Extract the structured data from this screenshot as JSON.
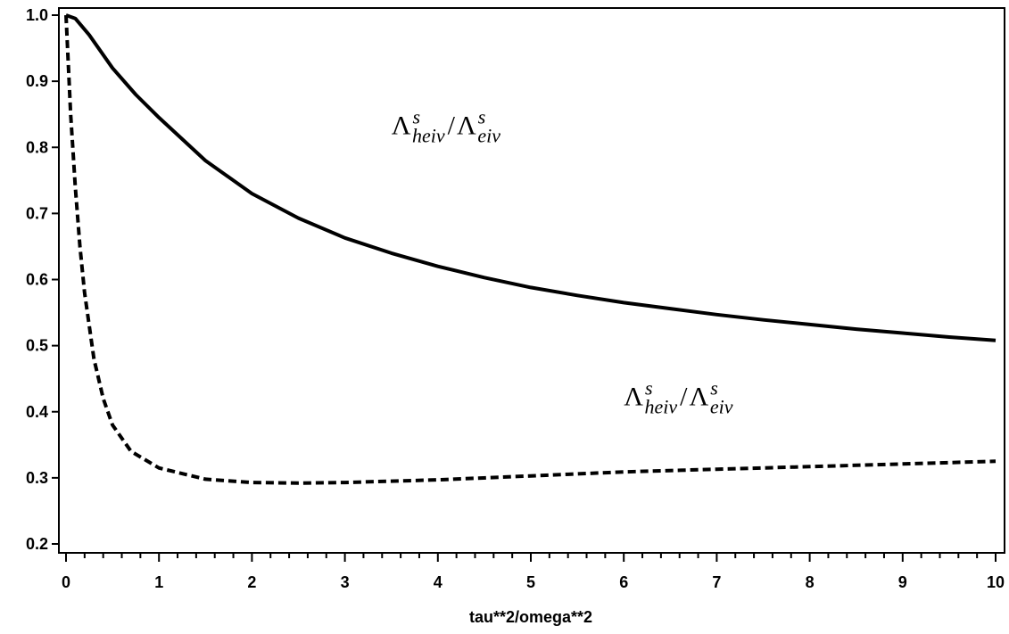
{
  "chart_data": {
    "type": "line",
    "title": "",
    "xlabel": "tau**2/omega**2",
    "ylabel": "",
    "xlim": [
      0,
      10
    ],
    "ylim": [
      0.2,
      1.0
    ],
    "x_ticks": [
      "0",
      "1",
      "2",
      "3",
      "4",
      "5",
      "6",
      "7",
      "8",
      "9",
      "10"
    ],
    "y_ticks": [
      "0.2",
      "0.3",
      "0.4",
      "0.5",
      "0.6",
      "0.7",
      "0.8",
      "0.9",
      "1.0"
    ],
    "grid": false,
    "series": [
      {
        "style": "solid",
        "x": [
          0,
          0.1,
          0.25,
          0.5,
          0.75,
          1,
          1.5,
          2,
          2.5,
          3,
          3.5,
          4,
          4.5,
          5,
          5.5,
          6,
          6.5,
          7,
          7.5,
          8,
          8.5,
          9,
          9.5,
          10
        ],
        "y": [
          1.0,
          0.995,
          0.97,
          0.92,
          0.88,
          0.845,
          0.78,
          0.73,
          0.693,
          0.663,
          0.64,
          0.62,
          0.603,
          0.588,
          0.576,
          0.565,
          0.556,
          0.547,
          0.539,
          0.532,
          0.525,
          0.519,
          0.513,
          0.508
        ]
      },
      {
        "style": "dashed",
        "x": [
          0,
          0.05,
          0.1,
          0.15,
          0.2,
          0.3,
          0.4,
          0.5,
          0.7,
          1,
          1.5,
          2,
          2.5,
          3,
          4,
          5,
          6,
          7,
          8,
          9,
          10
        ],
        "y": [
          1.0,
          0.85,
          0.74,
          0.65,
          0.58,
          0.48,
          0.42,
          0.38,
          0.34,
          0.315,
          0.298,
          0.293,
          0.292,
          0.293,
          0.297,
          0.303,
          0.309,
          0.313,
          0.317,
          0.321,
          0.325
        ]
      }
    ],
    "annotations": [
      {
        "base": "Λ",
        "sup1": "s",
        "sub1": "heiv",
        "sep": "/",
        "base2": "Λ",
        "sup2": "s",
        "sub2": "eiv",
        "at": [
          3.5,
          0.82
        ]
      },
      {
        "base": "Λ",
        "sup1": "s",
        "sub1": "heiv",
        "sep": "/",
        "base2": "Λ",
        "sup2": "s",
        "sub2": "eiv",
        "at": [
          6.0,
          0.41
        ]
      }
    ]
  }
}
